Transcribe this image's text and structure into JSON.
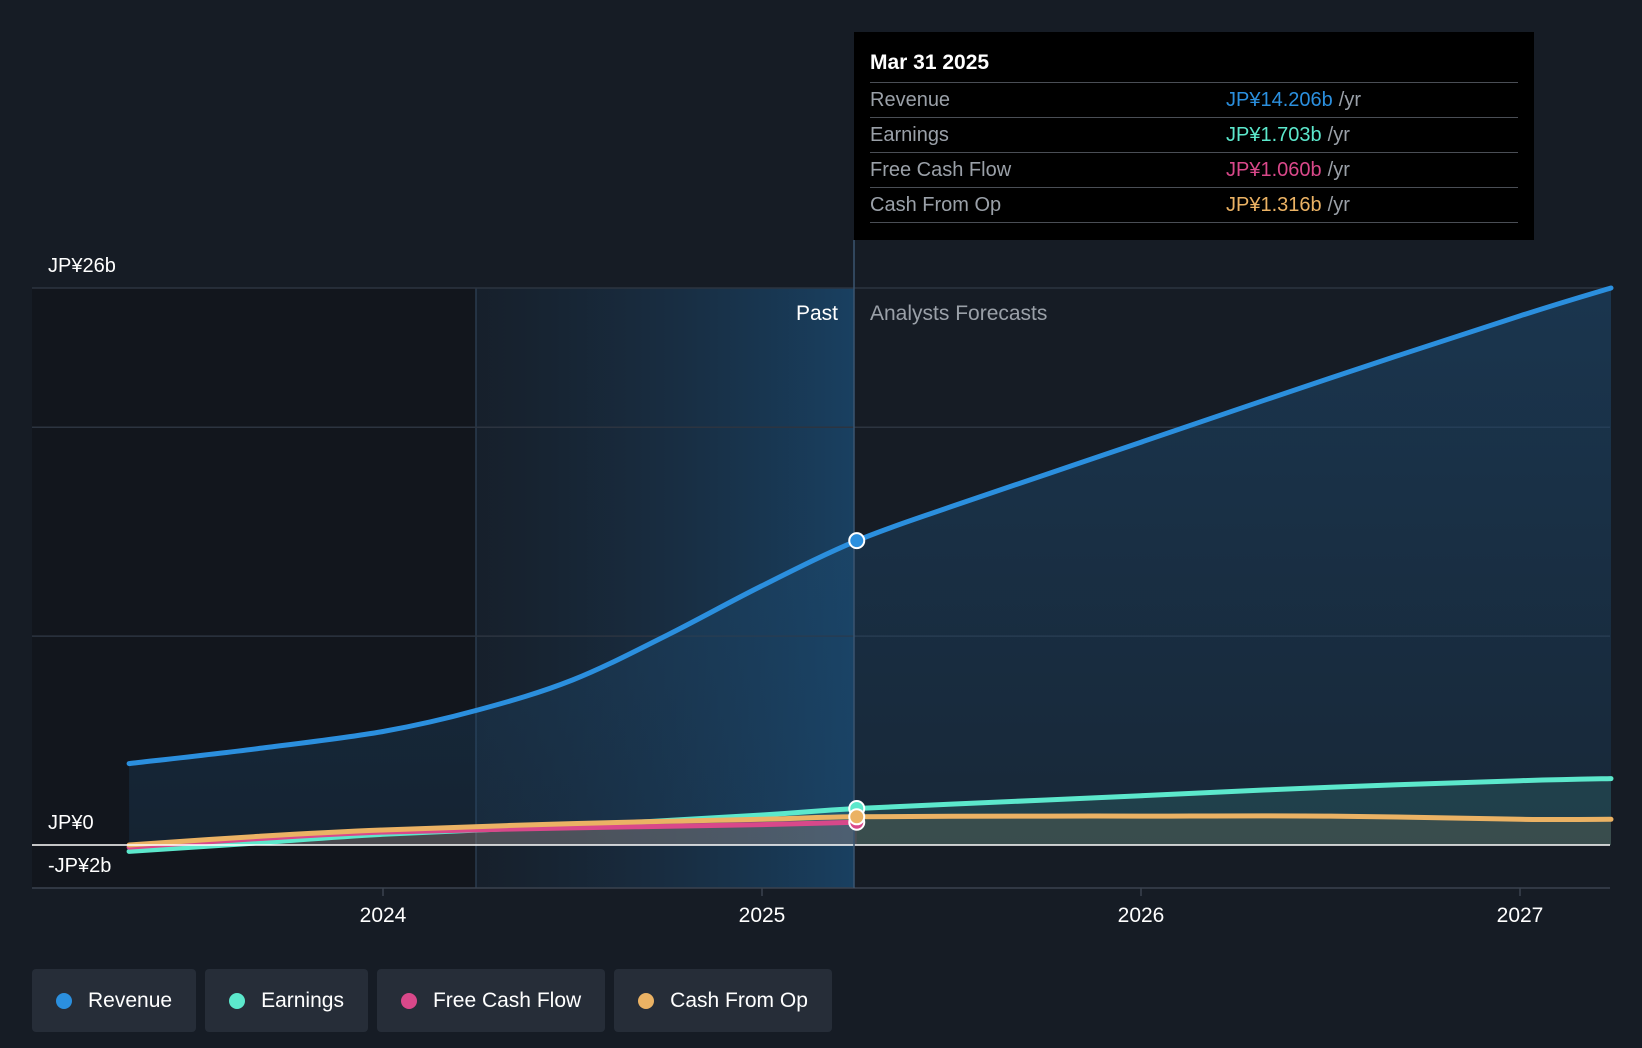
{
  "chart_data": {
    "type": "line",
    "currency_axis": {
      "top_label": "JP¥26b",
      "zero_label": "JP¥0",
      "bottom_label": "-JP¥2b"
    },
    "ylim": [
      -2,
      26
    ],
    "x_ticks": [
      "2024",
      "2025",
      "2026",
      "2027"
    ],
    "past_label": "Past",
    "forecast_label": "Analysts Forecasts",
    "divider_date": "Mar 31 2025",
    "series": [
      {
        "name": "Revenue",
        "color": "#2b8fde",
        "points": [
          [
            2023.33,
            3.8
          ],
          [
            2023.67,
            4.5
          ],
          [
            2024.0,
            5.3
          ],
          [
            2024.25,
            6.3
          ],
          [
            2024.5,
            7.7
          ],
          [
            2024.75,
            9.8
          ],
          [
            2025.0,
            12.1
          ],
          [
            2025.25,
            14.206
          ],
          [
            2025.5,
            15.8
          ],
          [
            2025.75,
            17.3
          ],
          [
            2026.0,
            18.8
          ],
          [
            2026.5,
            21.8
          ],
          [
            2027.0,
            24.7
          ],
          [
            2027.24,
            26.0
          ]
        ]
      },
      {
        "name": "Earnings",
        "color": "#5ce8cc",
        "points": [
          [
            2023.33,
            -0.3
          ],
          [
            2023.67,
            0.1
          ],
          [
            2024.0,
            0.5
          ],
          [
            2024.5,
            0.9
          ],
          [
            2025.0,
            1.4
          ],
          [
            2025.25,
            1.703
          ],
          [
            2025.75,
            2.1
          ],
          [
            2026.0,
            2.3
          ],
          [
            2026.5,
            2.7
          ],
          [
            2027.0,
            3.0
          ],
          [
            2027.24,
            3.1
          ]
        ]
      },
      {
        "name": "Free Cash Flow",
        "color": "#d9488a",
        "points": [
          [
            2023.33,
            -0.1
          ],
          [
            2023.67,
            0.3
          ],
          [
            2024.0,
            0.6
          ],
          [
            2024.5,
            0.8
          ],
          [
            2025.0,
            0.95
          ],
          [
            2025.25,
            1.06
          ]
        ]
      },
      {
        "name": "Cash From Op",
        "color": "#ebb264",
        "points": [
          [
            2023.33,
            0.0
          ],
          [
            2023.67,
            0.4
          ],
          [
            2024.0,
            0.7
          ],
          [
            2024.5,
            1.0
          ],
          [
            2025.0,
            1.2
          ],
          [
            2025.25,
            1.316
          ],
          [
            2025.75,
            1.35
          ],
          [
            2026.0,
            1.35
          ],
          [
            2026.5,
            1.35
          ],
          [
            2027.0,
            1.2
          ],
          [
            2027.24,
            1.2
          ]
        ]
      }
    ]
  },
  "tooltip": {
    "date": "Mar 31 2025",
    "rows": [
      {
        "label": "Revenue",
        "value": "JP¥14.206b",
        "unit": "/yr",
        "color": "#2b8fde"
      },
      {
        "label": "Earnings",
        "value": "JP¥1.703b",
        "unit": "/yr",
        "color": "#5ce8cc"
      },
      {
        "label": "Free Cash Flow",
        "value": "JP¥1.060b",
        "unit": "/yr",
        "color": "#d9488a"
      },
      {
        "label": "Cash From Op",
        "value": "JP¥1.316b",
        "unit": "/yr",
        "color": "#ebb264"
      }
    ]
  },
  "legend": [
    {
      "label": "Revenue",
      "color": "#2b8fde"
    },
    {
      "label": "Earnings",
      "color": "#5ce8cc"
    },
    {
      "label": "Free Cash Flow",
      "color": "#d9488a"
    },
    {
      "label": "Cash From Op",
      "color": "#ebb264"
    }
  ]
}
